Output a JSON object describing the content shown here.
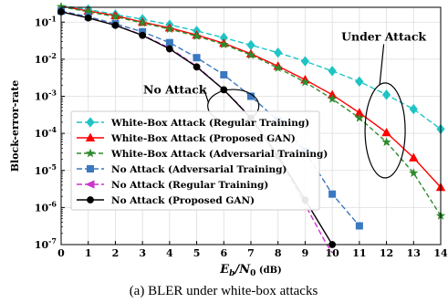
{
  "caption": "(a) BLER under white-box attacks",
  "chart_data": {
    "type": "line",
    "xlabel": "E_b/N_0 (dB)",
    "ylabel": "Block-error-rate",
    "xlim": [
      0,
      14
    ],
    "ylim_log10": [
      -7,
      -0.6
    ],
    "y_scale": "log",
    "x_ticks": [
      0,
      1,
      2,
      3,
      4,
      5,
      6,
      7,
      8,
      9,
      10,
      11,
      12,
      13,
      14
    ],
    "y_ticks": [
      {
        "exp": -1,
        "label": "10^-1"
      },
      {
        "exp": -2,
        "label": "10^-2"
      },
      {
        "exp": -3,
        "label": "10^-3"
      },
      {
        "exp": -4,
        "label": "10^-4"
      },
      {
        "exp": -5,
        "label": "10^-5"
      },
      {
        "exp": -6,
        "label": "10^-6"
      },
      {
        "exp": -7,
        "label": "10^-7"
      }
    ],
    "legend_placement": "lower-left",
    "series": [
      {
        "name": "White-Box Attack (Regular Training)",
        "color": "#1fc4c4",
        "dash": "6,3",
        "marker": "diamond",
        "marker_every": 1,
        "x": [
          0,
          1,
          2,
          3,
          4,
          5,
          6,
          7,
          8,
          9,
          10,
          11,
          12,
          13,
          14
        ],
        "y": [
          0.28,
          0.22,
          0.16,
          0.12,
          0.085,
          0.058,
          0.038,
          0.024,
          0.015,
          0.0088,
          0.0048,
          0.0025,
          0.0011,
          0.00045,
          0.00013
        ]
      },
      {
        "name": "White-Box Attack (Proposed GAN)",
        "color": "#ff0000",
        "dash": "",
        "marker": "triangle",
        "marker_every": 1,
        "x": [
          0,
          1,
          2,
          3,
          4,
          5,
          6,
          7,
          8,
          9,
          10,
          11,
          12,
          13,
          14
        ],
        "y": [
          0.27,
          0.2,
          0.15,
          0.1,
          0.07,
          0.045,
          0.027,
          0.014,
          0.0065,
          0.0028,
          0.0011,
          0.00036,
          0.000105,
          2.2e-05,
          3.5e-06
        ]
      },
      {
        "name": "White-Box Attack (Adversarial Training)",
        "color": "#2e8b2e",
        "dash": "5,3",
        "marker": "star",
        "marker_every": 1,
        "x": [
          0,
          1,
          2,
          3,
          4,
          5,
          6,
          7,
          8,
          9,
          10,
          11,
          12,
          13,
          14
        ],
        "y": [
          0.26,
          0.19,
          0.14,
          0.095,
          0.065,
          0.042,
          0.025,
          0.013,
          0.0058,
          0.0024,
          0.00085,
          0.00026,
          5.8e-05,
          8.5e-06,
          6e-07
        ]
      },
      {
        "name": "No Attack (Adversarial Training)",
        "color": "#3a78c0",
        "dash": "6,3",
        "marker": "square",
        "marker_every": 1,
        "x": [
          0,
          1,
          2,
          3,
          4,
          5,
          6,
          7,
          8,
          9,
          10,
          11
        ],
        "y": [
          0.2,
          0.14,
          0.09,
          0.055,
          0.028,
          0.011,
          0.0038,
          0.001,
          0.00022,
          3.3e-05,
          2.3e-06,
          3.2e-07
        ]
      },
      {
        "name": "No Attack (Regular Training)",
        "color": "#cc33cc",
        "dash": "6,3",
        "marker": "triangle-left",
        "marker_every": 0,
        "x": [
          0,
          1,
          2,
          3,
          4,
          5,
          6,
          6.5,
          7,
          7.5,
          8,
          8.5,
          9,
          9.5,
          9.8,
          10
        ],
        "y": [
          0.19,
          0.13,
          0.083,
          0.045,
          0.02,
          0.0065,
          0.0015,
          0.00065,
          0.00025,
          8e-05,
          2.2e-05,
          5.5e-06,
          1.2e-06,
          2.5e-07,
          1e-07,
          6e-08
        ]
      },
      {
        "name": "No Attack (Proposed GAN)",
        "color": "#000000",
        "dash": "",
        "marker": "circle",
        "marker_every": 1,
        "x": [
          0,
          1,
          2,
          3,
          4,
          5,
          6,
          7,
          8,
          9,
          10
        ],
        "y": [
          0.19,
          0.13,
          0.082,
          0.044,
          0.019,
          0.0062,
          0.0015,
          0.00026,
          2.5e-05,
          1.6e-06,
          1e-07
        ]
      }
    ],
    "annotations": [
      {
        "text": "Under Attack",
        "at": [
          11.9,
          0.04
        ]
      },
      {
        "text": "No Attack",
        "at": [
          4.2,
          0.0015
        ]
      }
    ]
  }
}
